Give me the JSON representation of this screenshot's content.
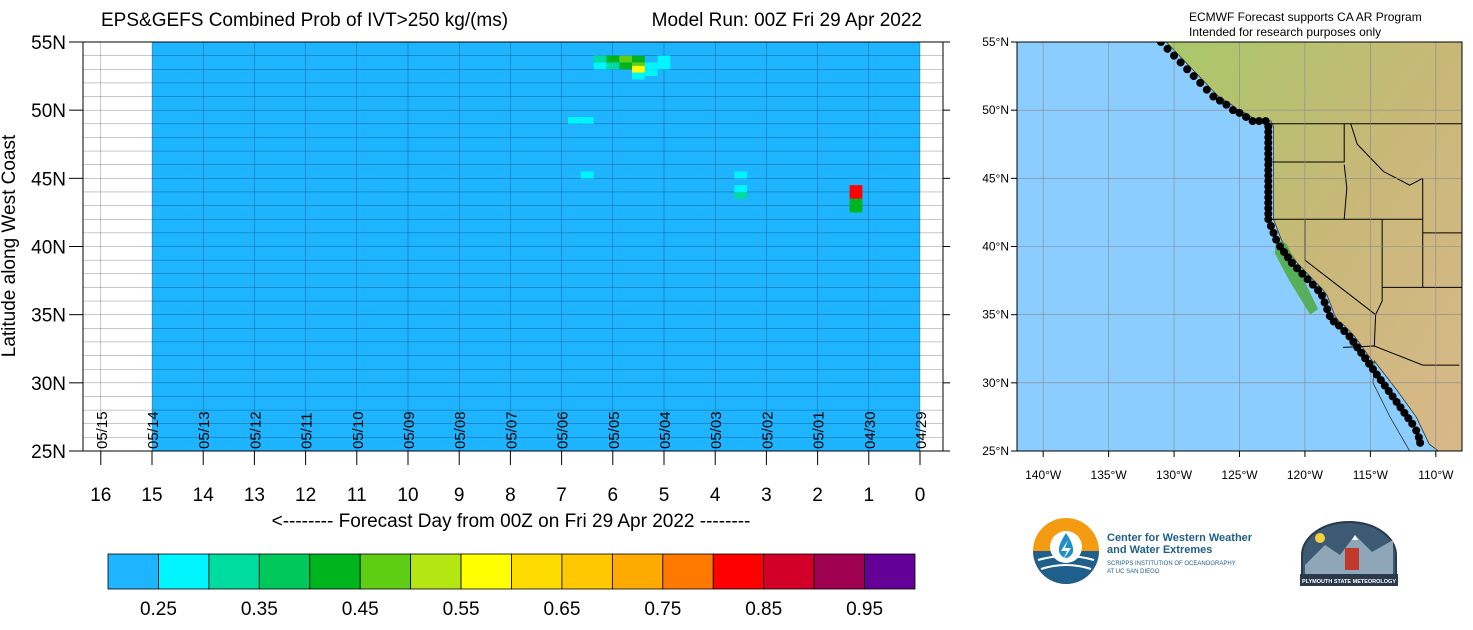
{
  "chart_data": {
    "type": "heatmap",
    "title_left": "EPS&GEFS Combined Prob of IVT>250 kg/(ms)",
    "title_right": "Model Run: 00Z Fri 29 Apr 2022",
    "ylabel": "Latitude along West Coast",
    "xlabel": "<-------- Forecast Day from 00Z on Fri 29 Apr 2022 --------",
    "x_range": [
      16,
      0
    ],
    "y_range": [
      25,
      55
    ],
    "y_ticks": [
      "55N",
      "50N",
      "45N",
      "40N",
      "35N",
      "30N",
      "25N"
    ],
    "x_ticks": [
      "16",
      "15",
      "14",
      "13",
      "12",
      "11",
      "10",
      "9",
      "8",
      "7",
      "6",
      "5",
      "4",
      "3",
      "2",
      "1",
      "0"
    ],
    "date_labels": [
      "05/15",
      "05/14",
      "05/13",
      "05/12",
      "05/11",
      "05/10",
      "05/09",
      "05/08",
      "05/07",
      "05/06",
      "05/05",
      "05/04",
      "05/03",
      "05/02",
      "05/01",
      "04/30",
      "04/29"
    ],
    "data_start_day": 15,
    "background_prob": "<0.25",
    "cells": [
      {
        "day": 1.25,
        "lat": 44.25,
        "prob": 0.85
      },
      {
        "day": 1.25,
        "lat": 43.75,
        "prob": 0.85
      },
      {
        "day": 1.25,
        "lat": 43.25,
        "prob": 0.4
      },
      {
        "day": 1.25,
        "lat": 42.75,
        "prob": 0.4
      },
      {
        "day": 3.5,
        "lat": 45.25,
        "prob": 0.3
      },
      {
        "day": 3.5,
        "lat": 44.25,
        "prob": 0.3
      },
      {
        "day": 3.5,
        "lat": 43.75,
        "prob": 0.35
      },
      {
        "day": 6.5,
        "lat": 49.25,
        "prob": 0.3
      },
      {
        "day": 6.75,
        "lat": 49.25,
        "prob": 0.3
      },
      {
        "day": 6.5,
        "lat": 45.25,
        "prob": 0.3
      },
      {
        "day": 5.5,
        "lat": 53.75,
        "prob": 0.4
      },
      {
        "day": 5.75,
        "lat": 53.75,
        "prob": 0.45
      },
      {
        "day": 6.0,
        "lat": 53.75,
        "prob": 0.4
      },
      {
        "day": 5.25,
        "lat": 53.25,
        "prob": 0.3
      },
      {
        "day": 5.5,
        "lat": 53.25,
        "prob": 0.45
      },
      {
        "day": 5.75,
        "lat": 53.25,
        "prob": 0.4
      },
      {
        "day": 6.0,
        "lat": 53.25,
        "prob": 0.35
      },
      {
        "day": 6.25,
        "lat": 53.25,
        "prob": 0.3
      },
      {
        "day": 5.5,
        "lat": 52.75,
        "prob": 0.35
      },
      {
        "day": 5.25,
        "lat": 52.75,
        "prob": 0.3
      },
      {
        "day": 5.0,
        "lat": 53.25,
        "prob": 0.3
      },
      {
        "day": 5.0,
        "lat": 53.75,
        "prob": 0.3
      },
      {
        "day": 6.25,
        "lat": 53.75,
        "prob": 0.35
      },
      {
        "day": 5.5,
        "lat": 53.0,
        "prob": 0.55
      },
      {
        "day": 5.5,
        "lat": 52.5,
        "prob": 0.3
      }
    ],
    "colorbar": {
      "colors": [
        "#1eb4ff",
        "#00f5ff",
        "#00dca0",
        "#00c85a",
        "#00b41e",
        "#5fcd14",
        "#b4e614",
        "#ffff00",
        "#ffdc00",
        "#ffc800",
        "#ffaa00",
        "#ff7800",
        "#ff0000",
        "#d20028",
        "#a00050",
        "#640096"
      ],
      "labels": [
        "0.25",
        "0.35",
        "0.45",
        "0.55",
        "0.65",
        "0.75",
        "0.85",
        "0.95"
      ]
    }
  },
  "map": {
    "note_line1": "ECMWF Forecast supports CA AR Program",
    "note_line2": "Intended for research purposes only",
    "lat_labels": [
      "55°N",
      "50°N",
      "45°N",
      "40°N",
      "35°N",
      "30°N",
      "25°N"
    ],
    "lon_labels": [
      "140°W",
      "135°W",
      "130°W",
      "125°W",
      "120°W",
      "115°W",
      "110°W"
    ],
    "ocean_color": "#8ccdff",
    "coast_points": [
      [
        -131,
        55
      ],
      [
        -130.5,
        54.5
      ],
      [
        -130,
        54
      ],
      [
        -129.5,
        53.5
      ],
      [
        -129,
        53
      ],
      [
        -128.5,
        52.5
      ],
      [
        -128,
        52
      ],
      [
        -127.5,
        51.5
      ],
      [
        -127,
        51
      ],
      [
        -126.5,
        50.7
      ],
      [
        -126,
        50.4
      ],
      [
        -125.5,
        50
      ],
      [
        -125,
        49.8
      ],
      [
        -124.5,
        49.5
      ],
      [
        -124,
        49.2
      ],
      [
        -123.5,
        49.2
      ],
      [
        -123,
        49.2
      ],
      [
        -122.8,
        48.8
      ],
      [
        -122.8,
        48.4
      ],
      [
        -122.8,
        48.0
      ],
      [
        -122.8,
        47.6
      ],
      [
        -122.8,
        47.2
      ],
      [
        -122.8,
        46.8
      ],
      [
        -122.8,
        46.4
      ],
      [
        -122.8,
        46.0
      ],
      [
        -122.8,
        45.6
      ],
      [
        -122.8,
        45.2
      ],
      [
        -122.8,
        44.8
      ],
      [
        -122.8,
        44.4
      ],
      [
        -122.8,
        44.0
      ],
      [
        -122.8,
        43.6
      ],
      [
        -122.8,
        43.2
      ],
      [
        -122.8,
        42.8
      ],
      [
        -122.8,
        42.4
      ],
      [
        -122.8,
        42.0
      ],
      [
        -122.6,
        41.5
      ],
      [
        -122.4,
        41.0
      ],
      [
        -122.2,
        40.5
      ],
      [
        -121.9,
        40.0
      ],
      [
        -121.6,
        39.6
      ],
      [
        -121.3,
        39.2
      ],
      [
        -121.0,
        38.8
      ],
      [
        -120.6,
        38.4
      ],
      [
        -120.2,
        38.0
      ],
      [
        -119.8,
        37.6
      ],
      [
        -119.4,
        37.2
      ],
      [
        -119.0,
        36.8
      ],
      [
        -118.7,
        36.4
      ],
      [
        -118.5,
        35.9
      ],
      [
        -118.3,
        35.4
      ],
      [
        -118.1,
        34.9
      ],
      [
        -117.8,
        34.5
      ],
      [
        -117.4,
        34.2
      ],
      [
        -117.0,
        33.8
      ],
      [
        -116.6,
        33.4
      ],
      [
        -116.3,
        33.0
      ],
      [
        -116.0,
        32.6
      ],
      [
        -115.7,
        32.2
      ],
      [
        -115.4,
        31.8
      ],
      [
        -115.1,
        31.4
      ],
      [
        -114.8,
        31.0
      ],
      [
        -114.5,
        30.6
      ],
      [
        -114.2,
        30.2
      ],
      [
        -113.9,
        29.8
      ],
      [
        -113.6,
        29.4
      ],
      [
        -113.3,
        29.0
      ],
      [
        -113.0,
        28.6
      ],
      [
        -112.7,
        28.2
      ],
      [
        -112.4,
        27.8
      ],
      [
        -112.1,
        27.4
      ],
      [
        -111.8,
        27.0
      ],
      [
        -111.5,
        26.5
      ],
      [
        -111.3,
        26.0
      ],
      [
        -111.2,
        25.6
      ]
    ]
  },
  "logos": {
    "cw3e_line1": "Center for Western Weather",
    "cw3e_line2": "and Water Extremes",
    "cw3e_line3": "SCRIPPS INSTITUTION OF OCEANOGRAPHY",
    "cw3e_line4": "AT UC SAN DIEGO",
    "psu_text": "PLYMOUTH STATE METEOROLOGY"
  }
}
